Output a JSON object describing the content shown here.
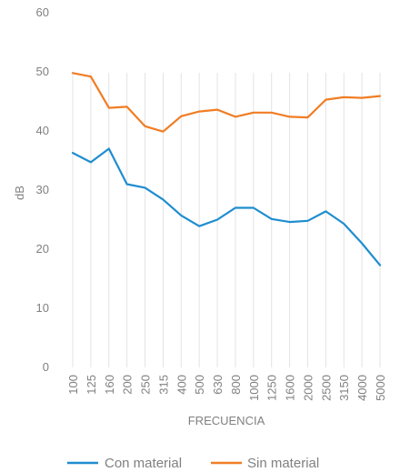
{
  "chart_data": {
    "type": "line",
    "title": "",
    "xlabel": "FRECUENCIA",
    "ylabel": "dB",
    "ylim": [
      0,
      60
    ],
    "yticks": [
      "0",
      "10",
      "20",
      "30",
      "40",
      "50",
      "60"
    ],
    "categories": [
      "100",
      "125",
      "160",
      "200",
      "250",
      "315",
      "400",
      "500",
      "630",
      "800",
      "1000",
      "1250",
      "1600",
      "2000",
      "2500",
      "3150",
      "4000",
      "5000"
    ],
    "grid": "vertical",
    "legend_position": "bottom",
    "series": [
      {
        "name": "Con material",
        "color": "#1f8dcf",
        "values": [
          36.3,
          34.7,
          37.0,
          31.0,
          30.4,
          28.4,
          25.7,
          23.9,
          25.0,
          27.0,
          27.0,
          25.1,
          24.6,
          24.8,
          26.4,
          24.3,
          21.0,
          17.3
        ]
      },
      {
        "name": "Sin material",
        "color": "#f07d24",
        "values": [
          49.8,
          49.2,
          43.9,
          44.1,
          40.8,
          39.9,
          42.5,
          43.3,
          43.6,
          42.4,
          43.1,
          43.1,
          42.4,
          42.3,
          45.3,
          45.7,
          45.6,
          45.9
        ]
      }
    ]
  }
}
